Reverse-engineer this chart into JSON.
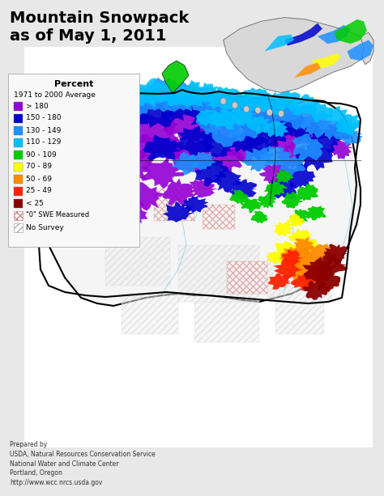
{
  "title": "Mountain Snowpack\nas of May 1, 2011",
  "title_fontsize": 16,
  "title_fontweight": "bold",
  "legend_title": "Percent",
  "legend_subtitle": "1971 to 2000 Average",
  "footer_lines": [
    "Prepared by",
    "USDA, Natural Resources Conservation Service",
    "National Water and Climate Center",
    "Portland, Oregon",
    "http://www.wcc.nrcs.usda.gov"
  ],
  "background_color": "#f0f0f0",
  "map_bg": "#ffffff",
  "legend_colors": [
    "#9400D3",
    "#0000CD",
    "#1E90FF",
    "#00BFFF",
    "#00CC00",
    "#FFFF00",
    "#FF8C00",
    "#FF2200",
    "#8B0000"
  ],
  "legend_labels": [
    "> 180",
    "150 - 180",
    "130 - 149",
    "110 - 129",
    "90 - 109",
    "70 - 89",
    "50 - 69",
    "25 - 49",
    "< 25"
  ],
  "fig_bg": "#e8e8e8"
}
